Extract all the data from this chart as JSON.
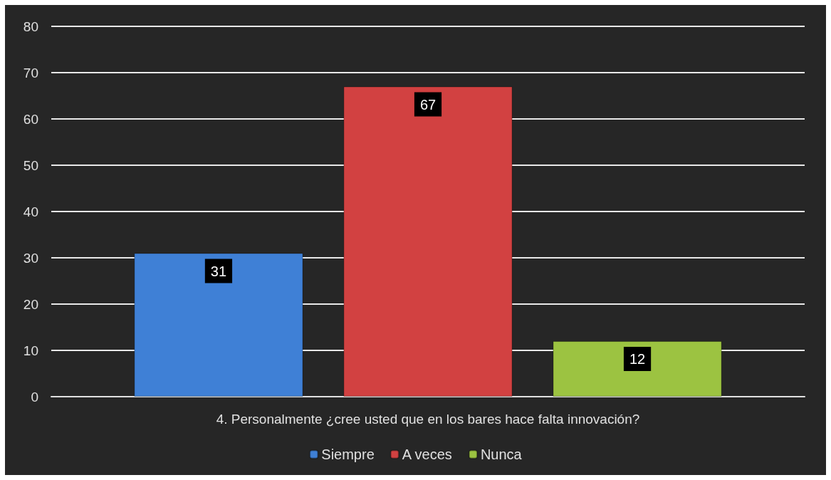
{
  "chart_data": {
    "type": "bar",
    "categories": [
      "4. Personalmente ¿cree usted que en los bares hace falta innovación?"
    ],
    "series": [
      {
        "name": "Siempre",
        "color": "#3f80d6",
        "values": [
          31
        ]
      },
      {
        "name": "A veces",
        "color": "#d24141",
        "values": [
          67
        ]
      },
      {
        "name": "Nunca",
        "color": "#9cc341",
        "values": [
          12
        ]
      }
    ],
    "ylim": [
      0,
      80
    ],
    "yticks": [
      0,
      10,
      20,
      30,
      40,
      50,
      60,
      70,
      80
    ],
    "grid": "y",
    "legend": "bottom",
    "data_labels": true
  }
}
